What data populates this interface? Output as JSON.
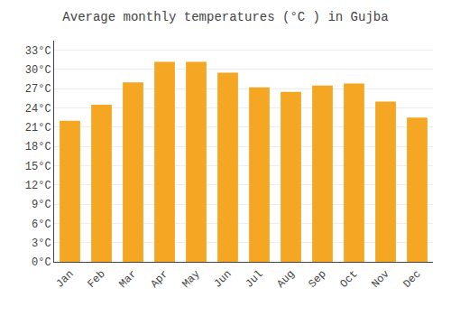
{
  "chart_data": {
    "type": "bar",
    "title": "Average monthly temperatures (°C ) in Gujba",
    "categories": [
      "Jan",
      "Feb",
      "Mar",
      "Apr",
      "May",
      "Jun",
      "Jul",
      "Aug",
      "Sep",
      "Oct",
      "Nov",
      "Dec"
    ],
    "values": [
      22.0,
      24.5,
      28.0,
      31.2,
      31.2,
      29.5,
      27.2,
      26.5,
      27.5,
      27.8,
      25.0,
      22.5
    ],
    "color": "#F5A623",
    "ylim": [
      0,
      34.5
    ],
    "yticks": [
      {
        "value": 0,
        "label": "0°C"
      },
      {
        "value": 3,
        "label": "3°C"
      },
      {
        "value": 6,
        "label": "6°C"
      },
      {
        "value": 9,
        "label": "9°C"
      },
      {
        "value": 12,
        "label": "12°C"
      },
      {
        "value": 15,
        "label": "15°C"
      },
      {
        "value": 18,
        "label": "18°C"
      },
      {
        "value": 21,
        "label": "21°C"
      },
      {
        "value": 24,
        "label": "24°C"
      },
      {
        "value": 27,
        "label": "27°C"
      },
      {
        "value": 30,
        "label": "30°C"
      },
      {
        "value": 33,
        "label": "33°C"
      }
    ],
    "grid": true
  }
}
